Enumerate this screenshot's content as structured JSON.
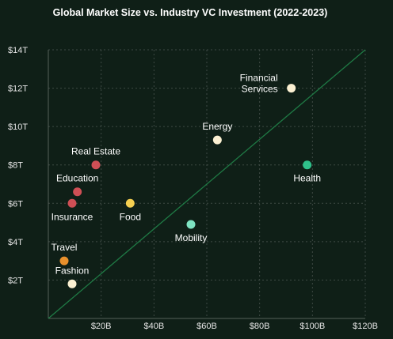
{
  "chart_data": {
    "type": "scatter",
    "title": "Global Market Size vs. Industry VC Investment (2022-2023)",
    "xlabel": "",
    "ylabel": "",
    "xlim": [
      0,
      120
    ],
    "ylim": [
      0,
      14
    ],
    "x_ticks": [
      20,
      40,
      60,
      80,
      100,
      120
    ],
    "x_tick_labels": [
      "$20B",
      "$40B",
      "$60B",
      "$80B",
      "$100B",
      "$120B"
    ],
    "y_ticks": [
      2,
      4,
      6,
      8,
      10,
      12,
      14
    ],
    "y_tick_labels": [
      "$2T",
      "$4T",
      "$6T",
      "$8T",
      "$10T",
      "$12T",
      "$14T"
    ],
    "grid": true,
    "reference_line": {
      "from": [
        0,
        0
      ],
      "to": [
        120,
        14
      ],
      "color": "#1f7a45"
    },
    "points": [
      {
        "label": "Fashion",
        "x": 9,
        "y": 1.8,
        "color": "#fbf0d2",
        "label_pos": "above"
      },
      {
        "label": "Travel",
        "x": 6,
        "y": 3.0,
        "color": "#e8902c",
        "label_pos": "above"
      },
      {
        "label": "Insurance",
        "x": 9,
        "y": 6.0,
        "color": "#cf4f55",
        "label_pos": "below"
      },
      {
        "label": "Education",
        "x": 11,
        "y": 6.6,
        "color": "#cf4f55",
        "label_pos": "above"
      },
      {
        "label": "Real Estate",
        "x": 18,
        "y": 8.0,
        "color": "#cf4f55",
        "label_pos": "above"
      },
      {
        "label": "Food",
        "x": 31,
        "y": 6.0,
        "color": "#f5cf50",
        "label_pos": "below"
      },
      {
        "label": "Mobility",
        "x": 54,
        "y": 4.9,
        "color": "#7ee3c2",
        "label_pos": "below"
      },
      {
        "label": "Energy",
        "x": 64,
        "y": 9.3,
        "color": "#fbf0d2",
        "label_pos": "above"
      },
      {
        "label": "Financial\nServices",
        "x": 92,
        "y": 12.0,
        "color": "#fbf0d2",
        "label_pos": "left"
      },
      {
        "label": "Health",
        "x": 98,
        "y": 8.0,
        "color": "#2fc08a",
        "label_pos": "below"
      }
    ]
  }
}
